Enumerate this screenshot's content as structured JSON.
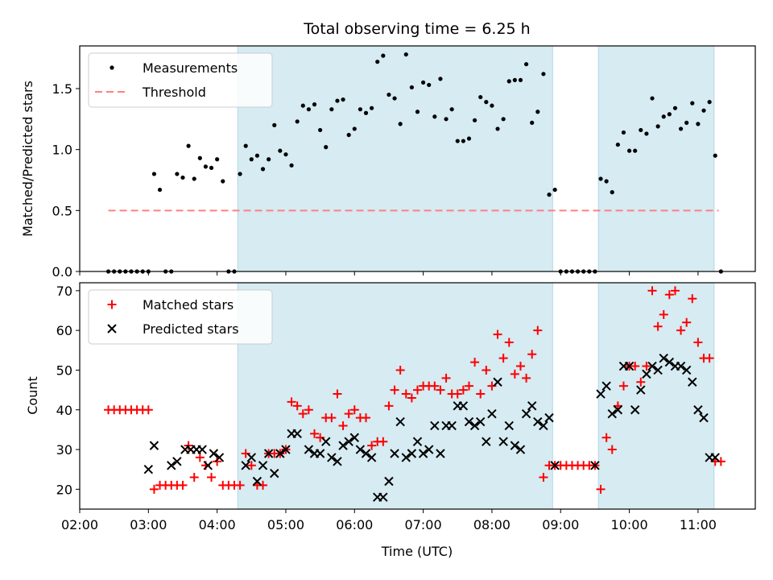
{
  "figure": {
    "title": "Total observing time = 6.25 h",
    "xlabel": "Time (UTC)"
  },
  "colors": {
    "span": "#add8e6",
    "measurements": "#000000",
    "threshold": "#ff8080",
    "matched": "#ff0000",
    "predicted": "#000000"
  },
  "chart_data": [
    {
      "type": "scatter",
      "panel": "top",
      "ylabel": "Matched/Predicted stars",
      "xlim": [
        "02:00",
        "11:50"
      ],
      "ylim": [
        0,
        1.85
      ],
      "x_ticks": [
        "02:00",
        "03:00",
        "04:00",
        "05:00",
        "06:00",
        "07:00",
        "08:00",
        "09:00",
        "10:00",
        "11:00"
      ],
      "y_ticks": [
        "0.0",
        "0.5",
        "1.0",
        "1.5"
      ],
      "shaded_spans": [
        [
          "04:18",
          "08:53"
        ],
        [
          "09:33",
          "11:14"
        ]
      ],
      "legend": {
        "position": "top-left",
        "entries": [
          "Measurements",
          "Threshold"
        ]
      },
      "threshold": {
        "name": "Threshold",
        "y": 0.5,
        "x_range": [
          "02:25",
          "11:18"
        ]
      },
      "series": [
        {
          "name": "Measurements",
          "x": [
            "02:25",
            "02:30",
            "02:35",
            "02:40",
            "02:45",
            "02:50",
            "02:55",
            "03:00",
            "03:05",
            "03:10",
            "03:15",
            "03:20",
            "03:25",
            "03:30",
            "03:35",
            "03:40",
            "03:45",
            "03:50",
            "03:55",
            "04:00",
            "04:05",
            "04:10",
            "04:15",
            "04:20",
            "04:25",
            "04:30",
            "04:35",
            "04:40",
            "04:45",
            "04:50",
            "04:55",
            "05:00",
            "05:05",
            "05:10",
            "05:15",
            "05:20",
            "05:25",
            "05:30",
            "05:35",
            "05:40",
            "05:45",
            "05:50",
            "05:55",
            "06:00",
            "06:05",
            "06:10",
            "06:15",
            "06:20",
            "06:25",
            "06:30",
            "06:35",
            "06:40",
            "06:45",
            "06:50",
            "06:55",
            "07:00",
            "07:05",
            "07:10",
            "07:15",
            "07:20",
            "07:25",
            "07:30",
            "07:35",
            "07:40",
            "07:45",
            "07:50",
            "07:55",
            "08:00",
            "08:05",
            "08:10",
            "08:15",
            "08:20",
            "08:25",
            "08:30",
            "08:35",
            "08:40",
            "08:45",
            "08:50",
            "08:55",
            "09:00",
            "09:05",
            "09:10",
            "09:15",
            "09:20",
            "09:25",
            "09:30",
            "09:35",
            "09:40",
            "09:45",
            "09:50",
            "09:55",
            "10:00",
            "10:05",
            "10:10",
            "10:15",
            "10:20",
            "10:25",
            "10:30",
            "10:35",
            "10:40",
            "10:45",
            "10:50",
            "10:55",
            "11:00",
            "11:05",
            "11:10",
            "11:15",
            "11:20"
          ],
          "y": [
            0,
            0,
            0,
            0,
            0,
            0,
            0,
            0,
            0.8,
            0.67,
            0,
            0,
            0.8,
            0.77,
            1.03,
            0.76,
            0.93,
            0.86,
            0.85,
            0.92,
            0.74,
            0,
            0,
            0.8,
            1.03,
            0.92,
            0.95,
            0.84,
            0.92,
            1.2,
            0.99,
            0.96,
            0.87,
            1.23,
            1.36,
            1.33,
            1.37,
            1.16,
            1.02,
            1.33,
            1.4,
            1.41,
            1.12,
            1.17,
            1.33,
            1.3,
            1.34,
            1.72,
            1.77,
            1.45,
            1.42,
            1.21,
            1.78,
            1.51,
            1.31,
            1.55,
            1.53,
            1.27,
            1.58,
            1.25,
            1.33,
            1.07,
            1.07,
            1.09,
            1.24,
            1.43,
            1.39,
            1.36,
            1.17,
            1.25,
            1.56,
            1.57,
            1.57,
            1.7,
            1.22,
            1.31,
            1.62,
            0.63,
            0.67,
            0,
            0,
            0,
            0,
            0,
            0,
            0,
            0.76,
            0.74,
            0.65,
            1.04,
            1.14,
            0.99,
            0.99,
            1.16,
            1.13,
            1.42,
            1.19,
            1.27,
            1.29,
            1.34,
            1.17,
            1.22,
            1.38,
            1.21,
            1.32,
            1.39,
            0.95,
            0
          ]
        }
      ]
    },
    {
      "type": "scatter",
      "panel": "bottom",
      "ylabel": "Count",
      "xlabel": "Time (UTC)",
      "xlim": [
        "02:00",
        "11:50"
      ],
      "ylim": [
        15,
        72
      ],
      "x_ticks": [
        "02:00",
        "03:00",
        "04:00",
        "05:00",
        "06:00",
        "07:00",
        "08:00",
        "09:00",
        "10:00",
        "11:00"
      ],
      "y_ticks": [
        "20",
        "30",
        "40",
        "50",
        "60",
        "70"
      ],
      "shaded_spans": [
        [
          "04:18",
          "08:53"
        ],
        [
          "09:33",
          "11:14"
        ]
      ],
      "legend": {
        "position": "top-left",
        "entries": [
          "Matched stars",
          "Predicted stars"
        ]
      },
      "series": [
        {
          "name": "Matched stars",
          "marker": "plus",
          "x": [
            "02:25",
            "02:30",
            "02:35",
            "02:40",
            "02:45",
            "02:50",
            "02:55",
            "03:00",
            "03:05",
            "03:10",
            "03:15",
            "03:20",
            "03:25",
            "03:30",
            "03:35",
            "03:40",
            "03:45",
            "03:50",
            "03:55",
            "04:00",
            "04:05",
            "04:10",
            "04:15",
            "04:20",
            "04:25",
            "04:30",
            "04:35",
            "04:40",
            "04:45",
            "04:50",
            "04:55",
            "05:00",
            "05:05",
            "05:10",
            "05:15",
            "05:20",
            "05:25",
            "05:30",
            "05:35",
            "05:40",
            "05:45",
            "05:50",
            "05:55",
            "06:00",
            "06:05",
            "06:10",
            "06:15",
            "06:20",
            "06:25",
            "06:30",
            "06:35",
            "06:40",
            "06:45",
            "06:50",
            "06:55",
            "07:00",
            "07:05",
            "07:10",
            "07:15",
            "07:20",
            "07:25",
            "07:30",
            "07:35",
            "07:40",
            "07:45",
            "07:50",
            "07:55",
            "08:00",
            "08:05",
            "08:10",
            "08:15",
            "08:20",
            "08:25",
            "08:30",
            "08:35",
            "08:40",
            "08:45",
            "08:50",
            "08:55",
            "09:00",
            "09:05",
            "09:10",
            "09:15",
            "09:20",
            "09:25",
            "09:30",
            "09:35",
            "09:40",
            "09:45",
            "09:50",
            "09:55",
            "10:00",
            "10:05",
            "10:10",
            "10:15",
            "10:20",
            "10:25",
            "10:30",
            "10:35",
            "10:40",
            "10:45",
            "10:50",
            "10:55",
            "11:00",
            "11:05",
            "11:10",
            "11:15",
            "11:20"
          ],
          "y": [
            40,
            40,
            40,
            40,
            40,
            40,
            40,
            40,
            20,
            21,
            21,
            21,
            21,
            21,
            31,
            23,
            28,
            26,
            23,
            27,
            21,
            21,
            21,
            21,
            29,
            26,
            21,
            21,
            29,
            29,
            29,
            30,
            42,
            41,
            39,
            40,
            34,
            33,
            38,
            38,
            44,
            36,
            39,
            40,
            38,
            38,
            31,
            32,
            32,
            41,
            45,
            50,
            44,
            43,
            45,
            46,
            46,
            46,
            45,
            48,
            44,
            44,
            45,
            46,
            52,
            44,
            50,
            46,
            59,
            53,
            57,
            49,
            51,
            48,
            54,
            60,
            23,
            26,
            26,
            26,
            26,
            26,
            26,
            26,
            26,
            26,
            20,
            33,
            30,
            41,
            46,
            51,
            51,
            47,
            51,
            70,
            61,
            64,
            69,
            70,
            60,
            62,
            68,
            57,
            53,
            53,
            27,
            27
          ]
        },
        {
          "name": "Predicted stars",
          "marker": "x",
          "x": [
            "03:00",
            "03:05",
            "03:20",
            "03:25",
            "03:32",
            "03:37",
            "03:42",
            "03:47",
            "03:52",
            "03:57",
            "04:02",
            "04:25",
            "04:30",
            "04:35",
            "04:40",
            "04:45",
            "04:50",
            "04:55",
            "05:00",
            "05:05",
            "05:10",
            "05:20",
            "05:25",
            "05:30",
            "05:35",
            "05:40",
            "05:45",
            "05:50",
            "05:55",
            "06:00",
            "06:05",
            "06:10",
            "06:15",
            "06:20",
            "06:25",
            "06:30",
            "06:35",
            "06:40",
            "06:45",
            "06:50",
            "06:55",
            "07:00",
            "07:05",
            "07:10",
            "07:15",
            "07:20",
            "07:25",
            "07:30",
            "07:35",
            "07:40",
            "07:45",
            "07:50",
            "07:55",
            "08:00",
            "08:05",
            "08:10",
            "08:15",
            "08:20",
            "08:25",
            "08:30",
            "08:35",
            "08:40",
            "08:45",
            "08:50",
            "08:55",
            "09:30",
            "09:35",
            "09:40",
            "09:45",
            "09:50",
            "09:55",
            "10:00",
            "10:05",
            "10:10",
            "10:15",
            "10:20",
            "10:25",
            "10:30",
            "10:35",
            "10:40",
            "10:45",
            "10:50",
            "10:55",
            "11:00",
            "11:05",
            "11:10",
            "11:15"
          ],
          "y": [
            25,
            31,
            26,
            27,
            30,
            30,
            30,
            30,
            26,
            29,
            28,
            26,
            28,
            22,
            26,
            29,
            24,
            29,
            30,
            34,
            34,
            30,
            29,
            29,
            32,
            28,
            27,
            31,
            32,
            33,
            30,
            29,
            28,
            18,
            18,
            22,
            29,
            37,
            28,
            29,
            32,
            29,
            30,
            36,
            29,
            36,
            36,
            41,
            41,
            37,
            36,
            37,
            32,
            39,
            47,
            32,
            36,
            31,
            30,
            39,
            41,
            37,
            36,
            38,
            26,
            26,
            44,
            46,
            39,
            40,
            51,
            51,
            40,
            45,
            49,
            51,
            50,
            53,
            52,
            51,
            51,
            50,
            47,
            40,
            38,
            28,
            28
          ]
        }
      ]
    }
  ]
}
